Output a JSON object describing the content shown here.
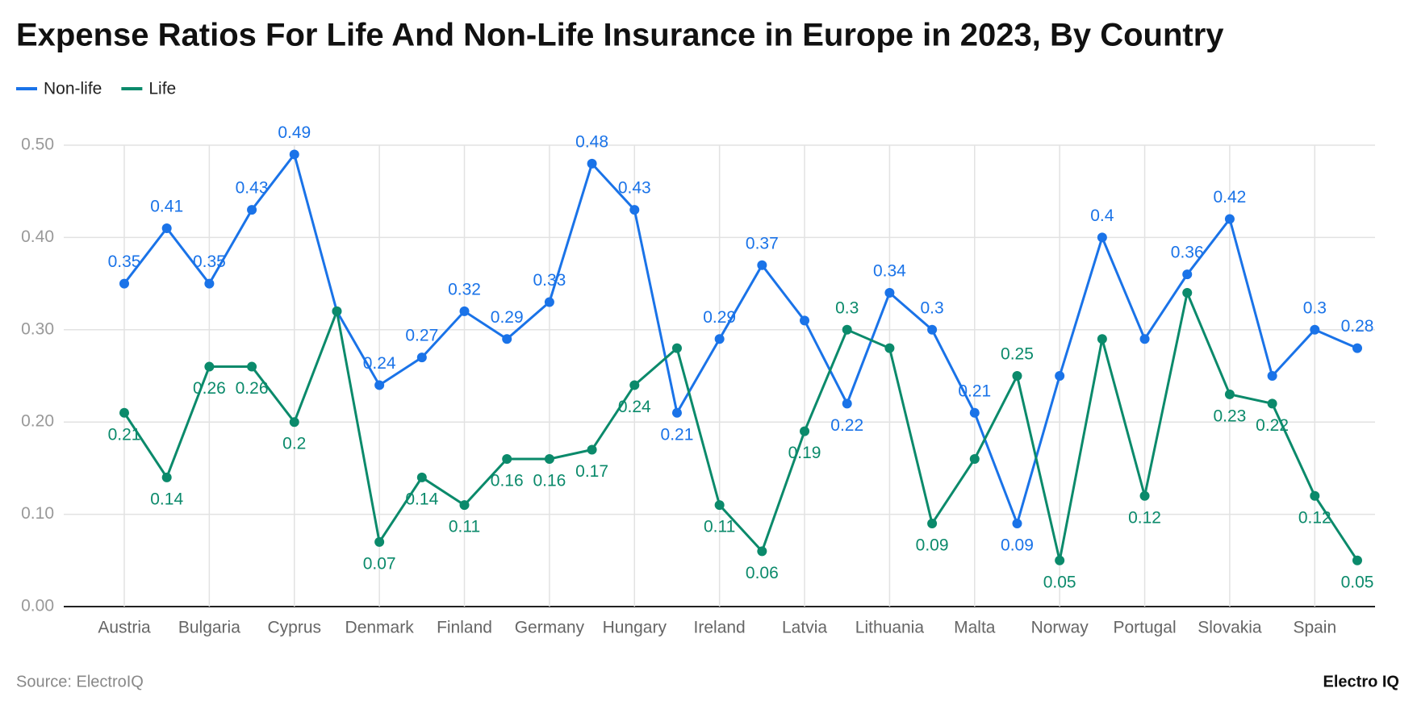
{
  "chart_data": {
    "type": "line",
    "title": "Expense Ratios For Life And Non-Life Insurance in Europe in 2023, By Country",
    "source": "Source: ElectroIQ",
    "brand": "Electro IQ",
    "categories": [
      "Austria",
      null,
      "Bulgaria",
      null,
      "Cyprus",
      null,
      "Denmark",
      null,
      "Finland",
      null,
      "Germany",
      null,
      "Hungary",
      null,
      "Ireland",
      null,
      "Latvia",
      null,
      "Lithuania",
      null,
      "Malta",
      null,
      "Norway",
      null,
      "Portugal",
      null,
      "Slovakia",
      null,
      "Spain",
      null
    ],
    "series": [
      {
        "name": "Non-life",
        "color": "#1a73e8",
        "values": [
          0.35,
          0.41,
          0.35,
          0.43,
          0.49,
          0.32,
          0.24,
          0.27,
          0.32,
          0.29,
          0.33,
          0.48,
          0.43,
          0.21,
          0.29,
          0.37,
          0.31,
          0.22,
          0.34,
          0.3,
          0.21,
          0.09,
          0.25,
          0.4,
          0.29,
          0.36,
          0.42,
          0.25,
          0.3,
          0.28
        ],
        "value_labels": [
          "0.35",
          "0.41",
          "0.35",
          "0.43",
          "0.49",
          null,
          "0.24",
          "0.27",
          "0.32",
          "0.29",
          "0.33",
          "0.48",
          "0.43",
          "0.21",
          "0.29",
          "0.37",
          null,
          "0.22",
          "0.34",
          "0.3",
          "0.21",
          "0.09",
          null,
          "0.4",
          null,
          "0.36",
          "0.42",
          null,
          "0.3",
          "0.28"
        ]
      },
      {
        "name": "Life",
        "color": "#0b8a6b",
        "values": [
          0.21,
          0.14,
          0.26,
          0.26,
          0.2,
          0.32,
          0.07,
          0.14,
          0.11,
          0.16,
          0.16,
          0.17,
          0.24,
          0.28,
          0.11,
          0.06,
          0.19,
          0.3,
          0.28,
          0.09,
          0.16,
          0.25,
          0.05,
          0.29,
          0.12,
          0.34,
          0.23,
          0.22,
          0.12,
          0.05
        ],
        "value_labels": [
          "0.21",
          "0.14",
          "0.26",
          "0.26",
          "0.2",
          null,
          "0.07",
          "0.14",
          "0.11",
          "0.16",
          "0.16",
          "0.17",
          "0.24",
          null,
          "0.11",
          "0.06",
          "0.19",
          "0.3",
          null,
          "0.09",
          null,
          "0.25",
          "0.05",
          null,
          "0.12",
          null,
          "0.23",
          "0.22",
          "0.12",
          "0.05"
        ]
      }
    ],
    "ylim": [
      0,
      0.5
    ],
    "yticks": [
      {
        "value": 0,
        "label": "0.00"
      },
      {
        "value": 0.1,
        "label": "0.10"
      },
      {
        "value": 0.2,
        "label": "0.20"
      },
      {
        "value": 0.3,
        "label": "0.30"
      },
      {
        "value": 0.4,
        "label": "0.40"
      },
      {
        "value": 0.5,
        "label": "0.50"
      }
    ],
    "grid": true,
    "legend": "top-left"
  }
}
